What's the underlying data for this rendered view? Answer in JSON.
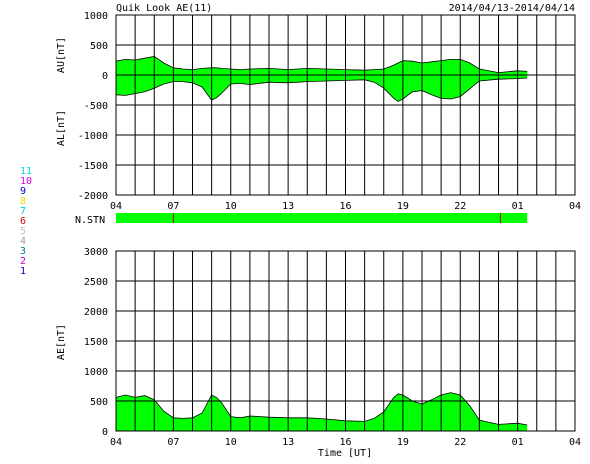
{
  "header": {
    "title": "Quik Look AE(11)",
    "date_range": "2014/04/13-2014/04/14"
  },
  "x_axis": {
    "tick_labels": [
      "04",
      "07",
      "10",
      "13",
      "16",
      "19",
      "22",
      "01",
      "04"
    ],
    "label": "Time [UT]"
  },
  "legend": {
    "items": [
      {
        "label": "11",
        "color": "#00d8d8"
      },
      {
        "label": "10",
        "color": "#e000e0"
      },
      {
        "label": "9",
        "color": "#0000c0"
      },
      {
        "label": "8",
        "color": "#f0e000"
      },
      {
        "label": "7",
        "color": "#00c8c8"
      },
      {
        "label": "6",
        "color": "#e00000"
      },
      {
        "label": "5",
        "color": "#c0c0c0"
      },
      {
        "label": "4",
        "color": "#a0a0a0"
      },
      {
        "label": "3",
        "color": "#008080"
      },
      {
        "label": "2",
        "color": "#c000c0"
      },
      {
        "label": "1",
        "color": "#0000c0"
      }
    ]
  },
  "colors": {
    "fill": "#00ff00",
    "station_marker": "#cc0000",
    "grid": "#000000"
  },
  "chart_data": [
    {
      "type": "area",
      "ylabel_top": "AU[nT]",
      "ylabel_bottom": "AL[nT]",
      "y_ticks": [
        1000,
        500,
        0,
        -500,
        -1000,
        -1500,
        -2000
      ],
      "ylim": [
        -2000,
        1000
      ],
      "x_hours": [
        4,
        4.5,
        5,
        5.5,
        6,
        6.5,
        7,
        7.5,
        8,
        8.5,
        9,
        9.25,
        9.5,
        10,
        10.5,
        11,
        12,
        13,
        14,
        15,
        16,
        17,
        17.5,
        18,
        18.5,
        18.75,
        19,
        19.5,
        20,
        20.5,
        21,
        21.5,
        22,
        22.5,
        23,
        24,
        25,
        25.5
      ],
      "series": [
        {
          "values": [
            230,
            260,
            250,
            280,
            310,
            200,
            120,
            100,
            90,
            110,
            120,
            120,
            110,
            100,
            90,
            100,
            110,
            90,
            110,
            100,
            90,
            80,
            90,
            100,
            160,
            200,
            240,
            230,
            200,
            220,
            240,
            260,
            260,
            200,
            100,
            40,
            70,
            60
          ]
        },
        {
          "values": [
            -330,
            -340,
            -310,
            -280,
            -220,
            -150,
            -110,
            -110,
            -130,
            -200,
            -420,
            -380,
            -310,
            -150,
            -140,
            -160,
            -120,
            -130,
            -110,
            -100,
            -90,
            -80,
            -120,
            -220,
            -380,
            -440,
            -400,
            -280,
            -260,
            -330,
            -390,
            -400,
            -360,
            -230,
            -100,
            -70,
            -60,
            -50
          ]
        }
      ]
    },
    {
      "type": "bar",
      "label": "N.STN",
      "station_marker_hours": [
        7,
        24.1
      ]
    },
    {
      "type": "area",
      "ylabel": "AE[nT]",
      "y_ticks": [
        3000,
        2500,
        2000,
        1500,
        1000,
        500,
        0
      ],
      "ylim": [
        0,
        3000
      ],
      "x_hours": [
        4,
        4.5,
        5,
        5.5,
        6,
        6.5,
        7,
        7.5,
        8,
        8.5,
        9,
        9.25,
        9.5,
        10,
        10.5,
        11,
        12,
        13,
        14,
        15,
        16,
        17,
        17.5,
        18,
        18.5,
        18.75,
        19,
        19.5,
        20,
        20.5,
        21,
        21.5,
        22,
        22.5,
        23,
        24,
        25,
        25.5
      ],
      "series": [
        {
          "values": [
            560,
            600,
            560,
            590,
            520,
            330,
            220,
            210,
            220,
            300,
            600,
            560,
            480,
            240,
            220,
            250,
            230,
            220,
            220,
            200,
            170,
            160,
            210,
            320,
            550,
            620,
            600,
            500,
            450,
            520,
            600,
            640,
            600,
            420,
            180,
            110,
            130,
            100
          ]
        }
      ]
    }
  ]
}
